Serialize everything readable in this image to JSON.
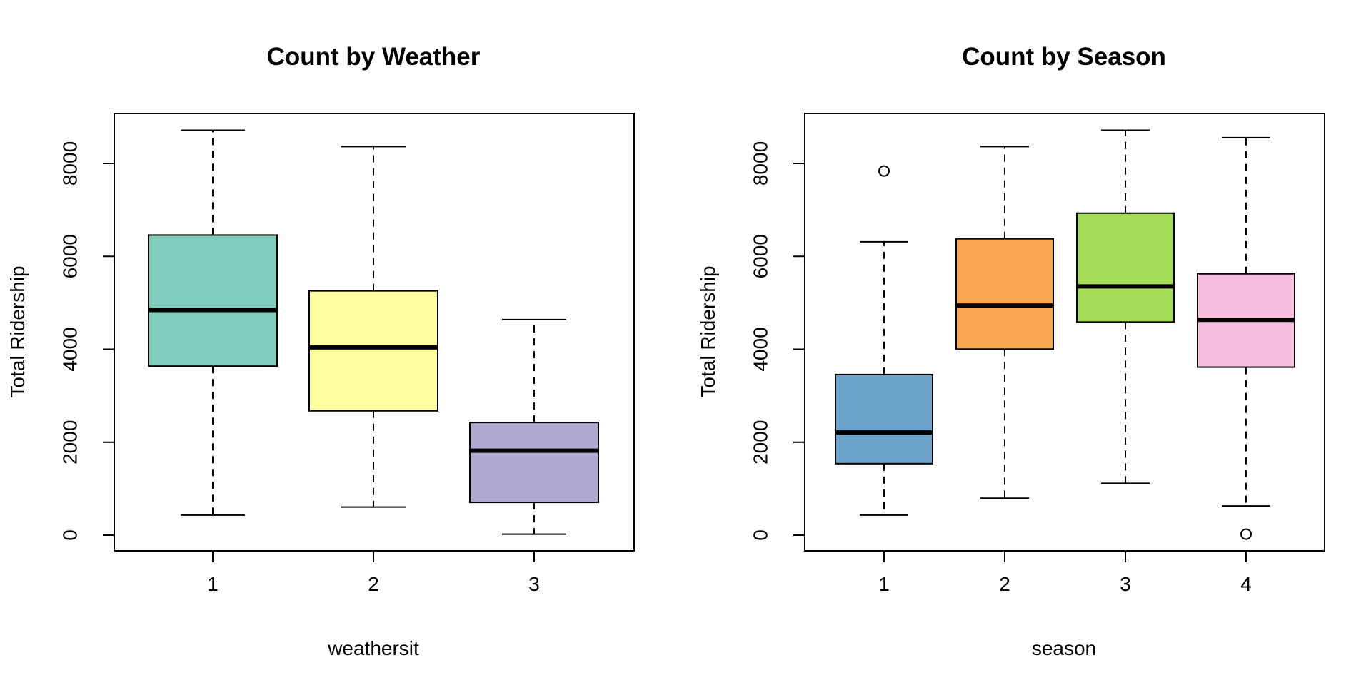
{
  "chart_data": [
    {
      "type": "boxplot",
      "title": "Count by Weather",
      "xlabel": "weathersit",
      "ylabel": "Total Ridership",
      "ylim": [
        0,
        9000
      ],
      "yticks": [
        0,
        2000,
        4000,
        6000,
        8000
      ],
      "categories": [
        "1",
        "2",
        "3"
      ],
      "boxes": [
        {
          "category": "1",
          "min": 431,
          "q1": 3636,
          "median": 4844,
          "q3": 6458,
          "max": 8714,
          "outliers": [],
          "color": "#7FCDBB"
        },
        {
          "category": "2",
          "min": 605,
          "q1": 2675,
          "median": 4040,
          "q3": 5257,
          "max": 8362,
          "outliers": [],
          "color": "#FFFFA0"
        },
        {
          "category": "3",
          "min": 22,
          "q1": 705,
          "median": 1817,
          "q3": 2424,
          "max": 4639,
          "outliers": [],
          "color": "#B0AAD0"
        }
      ]
    },
    {
      "type": "boxplot",
      "title": "Count by Season",
      "xlabel": "season",
      "ylabel": "Total Ridership",
      "ylim": [
        0,
        9000
      ],
      "yticks": [
        0,
        2000,
        4000,
        6000,
        8000
      ],
      "categories": [
        "1",
        "2",
        "3",
        "4"
      ],
      "boxes": [
        {
          "category": "1",
          "min": 431,
          "q1": 1538,
          "median": 2209,
          "q3": 3456,
          "max": 6312,
          "outliers": [
            7836
          ],
          "color": "#6BA3CB"
        },
        {
          "category": "2",
          "min": 795,
          "q1": 4003,
          "median": 4941,
          "q3": 6377,
          "max": 8362,
          "outliers": [],
          "color": "#F9A651"
        },
        {
          "category": "3",
          "min": 1115,
          "q1": 4586,
          "median": 5353,
          "q3": 6929,
          "max": 8714,
          "outliers": [],
          "color": "#A5DC57"
        },
        {
          "category": "4",
          "min": 627,
          "q1": 3615,
          "median": 4634,
          "q3": 5624,
          "max": 8555,
          "outliers": [
            22
          ],
          "color": "#F7BFDF"
        }
      ]
    }
  ]
}
